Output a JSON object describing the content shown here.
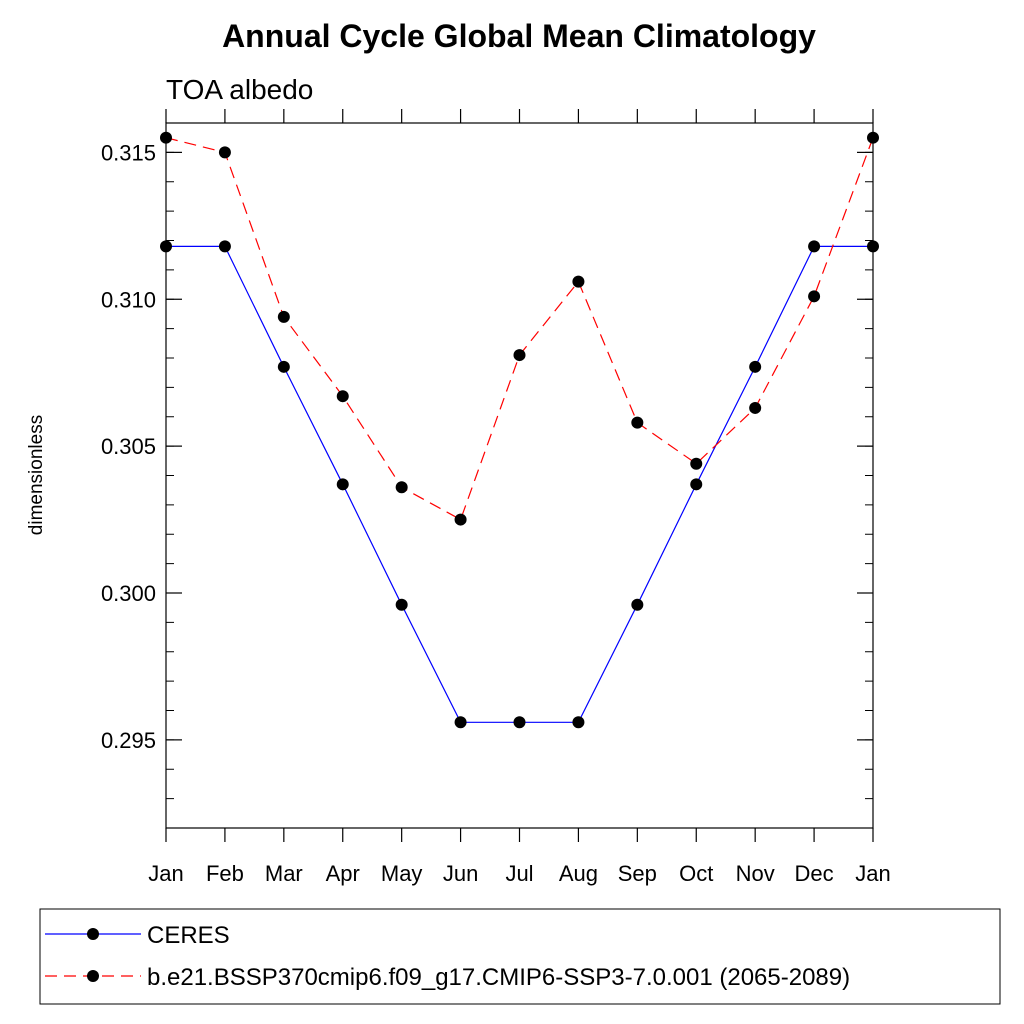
{
  "chart_data": {
    "type": "line",
    "title": "Annual Cycle Global Mean Climatology",
    "subtitle": "TOA albedo",
    "xlabel": "",
    "ylabel": "dimensionless",
    "categories": [
      "Jan",
      "Feb",
      "Mar",
      "Apr",
      "May",
      "Jun",
      "Jul",
      "Aug",
      "Sep",
      "Oct",
      "Nov",
      "Dec",
      "Jan"
    ],
    "yticks": [
      "0.295",
      "0.300",
      "0.305",
      "0.310",
      "0.315"
    ],
    "ylim": [
      0.292,
      0.316
    ],
    "grid": false,
    "legend_position": "bottom",
    "series": [
      {
        "name": "CERES",
        "color": "#0000ff",
        "dash": "solid",
        "values": [
          0.3118,
          0.3118,
          0.3077,
          0.3037,
          0.2996,
          0.2956,
          0.2956,
          0.2956,
          0.2996,
          0.3037,
          0.3077,
          0.3118,
          0.3118
        ]
      },
      {
        "name": "b.e21.BSSP370cmip6.f09_g17.CMIP6-SSP3-7.0.001 (2065-2089)",
        "color": "#ff0000",
        "dash": "dashed",
        "values": [
          0.3155,
          0.315,
          0.3094,
          0.3067,
          0.3036,
          0.3025,
          0.3081,
          0.3106,
          0.3058,
          0.3044,
          0.3063,
          0.3101,
          0.3155
        ]
      }
    ]
  }
}
